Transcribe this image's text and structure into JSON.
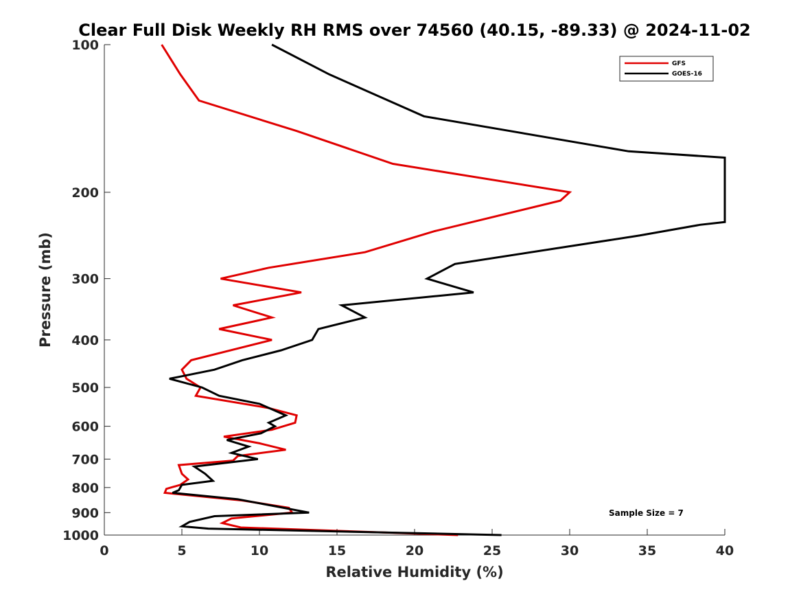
{
  "chart_data": {
    "type": "line",
    "title": "Clear Full Disk Weekly RH RMS over 74560 (40.15, -89.33) @ 2024-11-02",
    "xlabel": "Relative Humidity (%)",
    "ylabel": "Pressure (mb)",
    "xlim": [
      0,
      40
    ],
    "ylim": [
      100,
      1000
    ],
    "y_scale": "log",
    "y_direction": "reversed",
    "x_ticks": [
      0,
      5,
      10,
      15,
      20,
      25,
      30,
      35,
      40
    ],
    "x_tick_labels": [
      "0",
      "5",
      "10",
      "15",
      "20",
      "25",
      "30",
      "35",
      "40"
    ],
    "y_ticks": [
      100,
      200,
      300,
      400,
      500,
      600,
      700,
      800,
      900,
      1000
    ],
    "y_tick_labels": [
      "100",
      "200",
      "300",
      "400",
      "500",
      "600",
      "700",
      "800",
      "900",
      "1000"
    ],
    "grid": false,
    "legend_position": "top-right",
    "annotation": "Sample Size = 7",
    "series": [
      {
        "name": "GFS",
        "color": "#e00000",
        "points": [
          [
            3.7,
            100
          ],
          [
            4.9,
            115
          ],
          [
            6.1,
            130
          ],
          [
            12.4,
            150
          ],
          [
            18.6,
            175
          ],
          [
            30.0,
            200
          ],
          [
            29.4,
            208
          ],
          [
            21.3,
            240
          ],
          [
            16.8,
            265
          ],
          [
            10.6,
            285
          ],
          [
            7.5,
            300
          ],
          [
            12.7,
            320
          ],
          [
            8.3,
            340
          ],
          [
            10.8,
            360
          ],
          [
            7.4,
            380
          ],
          [
            10.8,
            400
          ],
          [
            5.6,
            440
          ],
          [
            5.0,
            460
          ],
          [
            5.3,
            480
          ],
          [
            6.2,
            500
          ],
          [
            5.9,
            520
          ],
          [
            10.5,
            550
          ],
          [
            12.4,
            570
          ],
          [
            12.3,
            590
          ],
          [
            10.8,
            610
          ],
          [
            7.7,
            630
          ],
          [
            10.0,
            650
          ],
          [
            11.7,
            670
          ],
          [
            8.6,
            690
          ],
          [
            8.3,
            705
          ],
          [
            4.8,
            720
          ],
          [
            5.0,
            750
          ],
          [
            5.4,
            770
          ],
          [
            4.9,
            790
          ],
          [
            4.0,
            805
          ],
          [
            3.9,
            820
          ],
          [
            8.9,
            850
          ],
          [
            11.9,
            880
          ],
          [
            12.1,
            900
          ],
          [
            8.2,
            925
          ],
          [
            7.6,
            945
          ],
          [
            8.8,
            965
          ],
          [
            22.8,
            1000
          ]
        ]
      },
      {
        "name": "GOES-16",
        "color": "#000000",
        "points": [
          [
            10.8,
            100
          ],
          [
            14.5,
            115
          ],
          [
            20.6,
            140
          ],
          [
            33.8,
            165
          ],
          [
            40.0,
            170
          ],
          [
            40.0,
            230
          ],
          [
            38.4,
            233
          ],
          [
            34.5,
            245
          ],
          [
            22.6,
            280
          ],
          [
            20.8,
            300
          ],
          [
            23.8,
            320
          ],
          [
            15.3,
            340
          ],
          [
            16.8,
            360
          ],
          [
            13.8,
            380
          ],
          [
            13.4,
            400
          ],
          [
            11.4,
            420
          ],
          [
            8.9,
            440
          ],
          [
            7.1,
            460
          ],
          [
            4.2,
            480
          ],
          [
            6.3,
            500
          ],
          [
            7.4,
            520
          ],
          [
            10.0,
            540
          ],
          [
            11.7,
            570
          ],
          [
            10.6,
            590
          ],
          [
            11.0,
            600
          ],
          [
            10.1,
            620
          ],
          [
            7.9,
            640
          ],
          [
            9.3,
            660
          ],
          [
            8.2,
            680
          ],
          [
            9.9,
            700
          ],
          [
            5.8,
            725
          ],
          [
            6.5,
            750
          ],
          [
            7.0,
            775
          ],
          [
            5.0,
            790
          ],
          [
            4.8,
            810
          ],
          [
            4.4,
            820
          ],
          [
            8.6,
            845
          ],
          [
            13.2,
            900
          ],
          [
            7.1,
            915
          ],
          [
            5.5,
            940
          ],
          [
            5.0,
            960
          ],
          [
            6.7,
            970
          ],
          [
            25.6,
            1000
          ]
        ]
      }
    ]
  }
}
